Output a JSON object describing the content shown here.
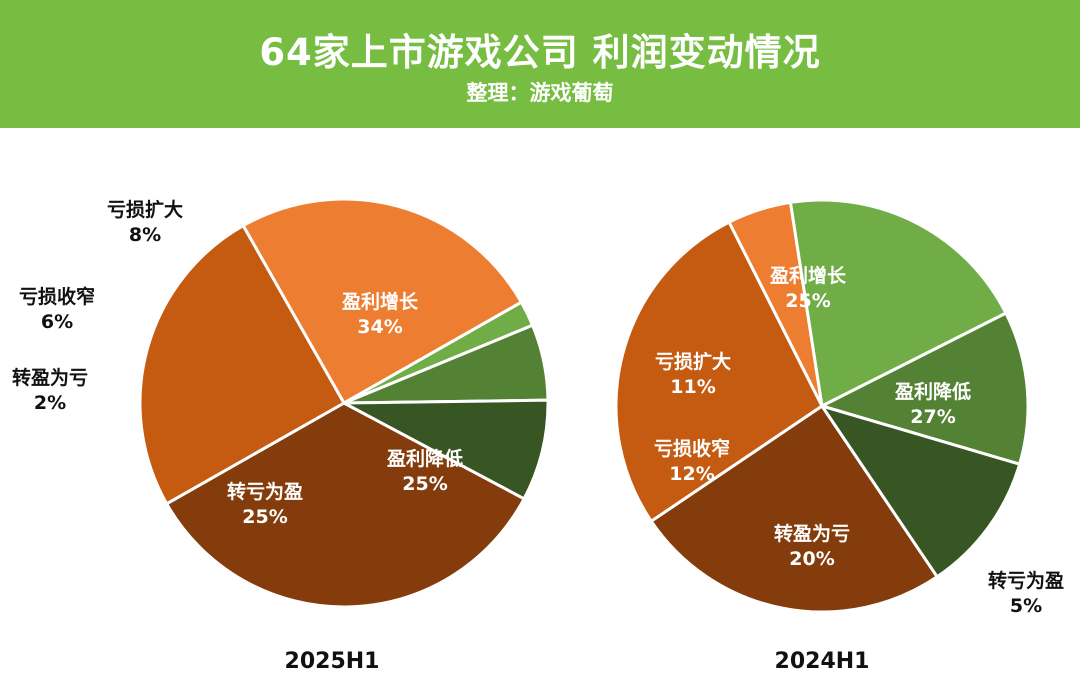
{
  "header": {
    "title": "64家上市游戏公司 利润变动情况",
    "subtitle": "整理：游戏葡萄"
  },
  "colors": {
    "banner": "#76bd42",
    "盈利增长": "#843c0c",
    "盈利降低": "#c55a11",
    "转亏为盈": "#ed7d31",
    "转盈为亏": "#70ad47",
    "亏损收窄": "#548235",
    "亏损扩大": "#375623"
  },
  "chart_data": [
    {
      "type": "pie",
      "caption": "2025H1",
      "slices": [
        {
          "label": "盈利增长",
          "value": 34,
          "display": "34%",
          "color": "#843c0c"
        },
        {
          "label": "盈利降低",
          "value": 25,
          "display": "25%",
          "color": "#c55a11"
        },
        {
          "label": "转亏为盈",
          "value": 25,
          "display": "25%",
          "color": "#ed7d31"
        },
        {
          "label": "转盈为亏",
          "value": 2,
          "display": "2%",
          "color": "#70ad47"
        },
        {
          "label": "亏损收窄",
          "value": 6,
          "display": "6%",
          "color": "#548235"
        },
        {
          "label": "亏损扩大",
          "value": 8,
          "display": "8%",
          "color": "#375623"
        }
      ]
    },
    {
      "type": "pie",
      "caption": "2024H1",
      "slices": [
        {
          "label": "盈利增长",
          "value": 25,
          "display": "25%",
          "color": "#843c0c"
        },
        {
          "label": "盈利降低",
          "value": 27,
          "display": "27%",
          "color": "#c55a11"
        },
        {
          "label": "转亏为盈",
          "value": 5,
          "display": "5%",
          "color": "#ed7d31"
        },
        {
          "label": "转盈为亏",
          "value": 20,
          "display": "20%",
          "color": "#70ad47"
        },
        {
          "label": "亏损收窄",
          "value": 12,
          "display": "12%",
          "color": "#548235"
        },
        {
          "label": "亏损扩大",
          "value": 11,
          "display": "11%",
          "color": "#375623"
        }
      ]
    }
  ]
}
